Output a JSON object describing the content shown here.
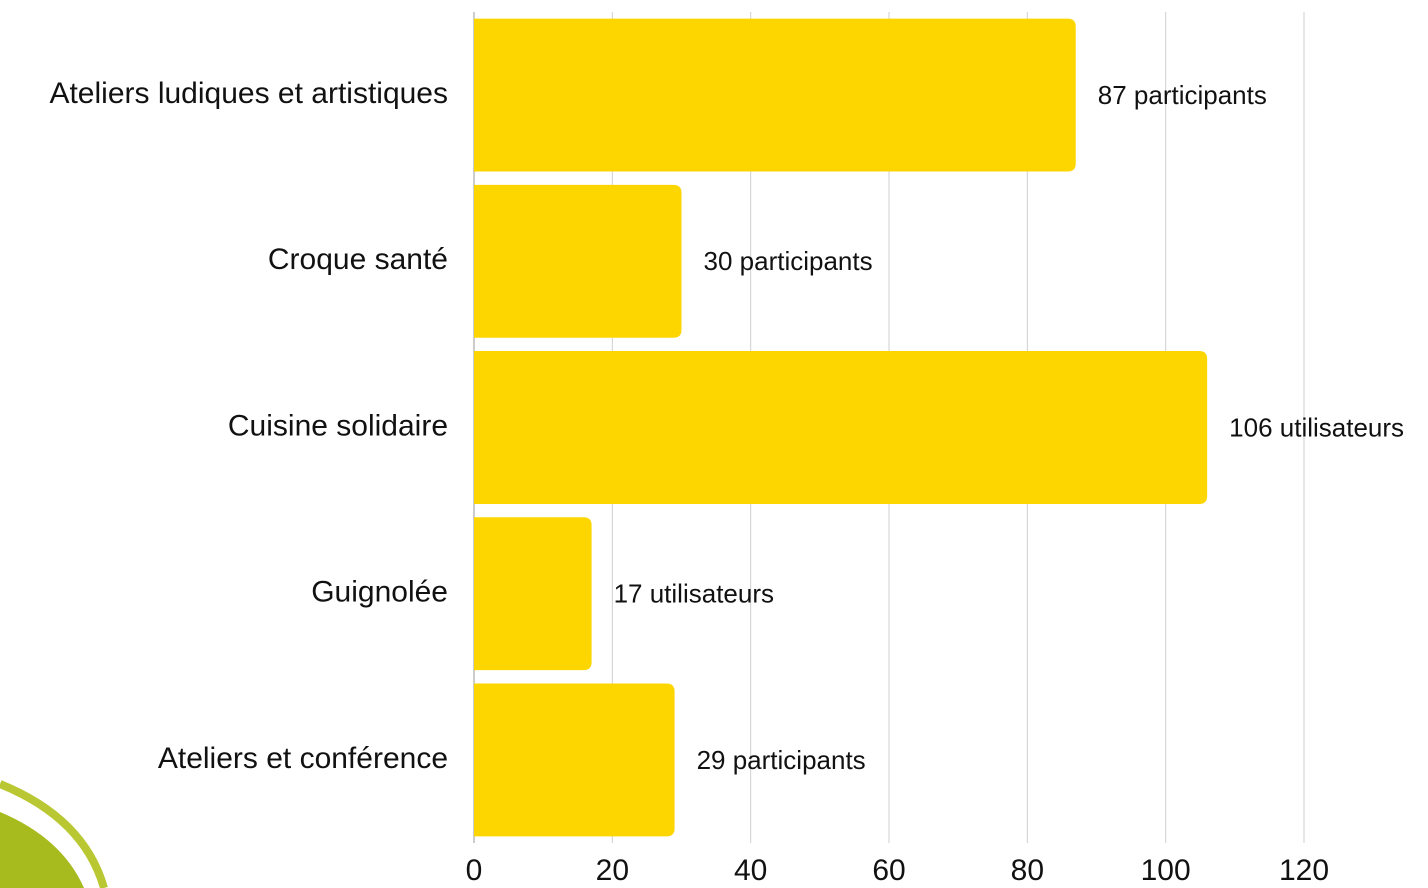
{
  "chart_data": {
    "type": "barh",
    "categories": [
      "Ateliers ludiques et artistiques",
      "Croque santé",
      "Cuisine solidaire",
      "Guignolée",
      "Ateliers et conférence"
    ],
    "values": [
      87,
      30,
      106,
      17,
      29
    ],
    "value_labels": [
      "87 participants",
      "30 participants",
      "106 utilisateurs",
      "17 utilisateurs",
      "29 participants"
    ],
    "color": "#fdd600",
    "xlim": [
      0,
      120
    ],
    "xticks": [
      0,
      20,
      40,
      60,
      80,
      100,
      120
    ],
    "grid": true
  }
}
